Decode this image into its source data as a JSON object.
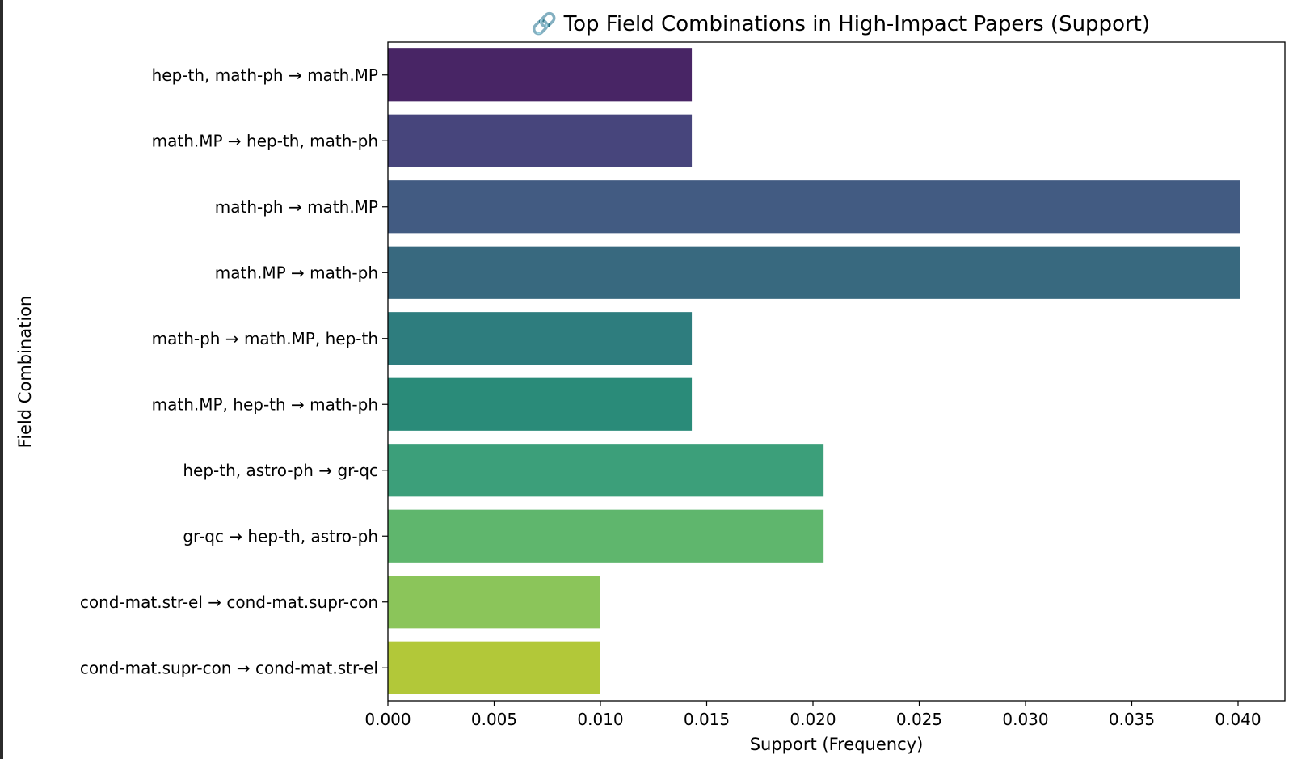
{
  "chart_data": {
    "type": "bar",
    "orientation": "horizontal",
    "title": "🔗 Top Field Combinations in High-Impact Papers (Support)",
    "xlabel": "Support (Frequency)",
    "ylabel": "Field Combination",
    "xlim": [
      0,
      0.042
    ],
    "xticks": [
      "0.000",
      "0.005",
      "0.010",
      "0.015",
      "0.020",
      "0.025",
      "0.030",
      "0.035",
      "0.040"
    ],
    "grid": false,
    "legend": "none",
    "categories": [
      "hep-th, math-ph → math.MP",
      "math.MP → hep-th, math-ph",
      "math-ph → math.MP",
      "math.MP → math-ph",
      "math-ph → math.MP, hep-th",
      "math.MP, hep-th → math-ph",
      "hep-th, astro-ph → gr-qc",
      "gr-qc → hep-th, astro-ph",
      "cond-mat.str-el → cond-mat.supr-con",
      "cond-mat.supr-con → cond-mat.str-el"
    ],
    "values": [
      0.0143,
      0.0143,
      0.0401,
      0.0401,
      0.0143,
      0.0143,
      0.0205,
      0.0205,
      0.01,
      0.01
    ],
    "colors": [
      "#482565",
      "#47457c",
      "#425b82",
      "#38697f",
      "#2e7d7e",
      "#2a8b79",
      "#3c9f7a",
      "#5fb66d",
      "#8bc55a",
      "#b2c839"
    ]
  }
}
